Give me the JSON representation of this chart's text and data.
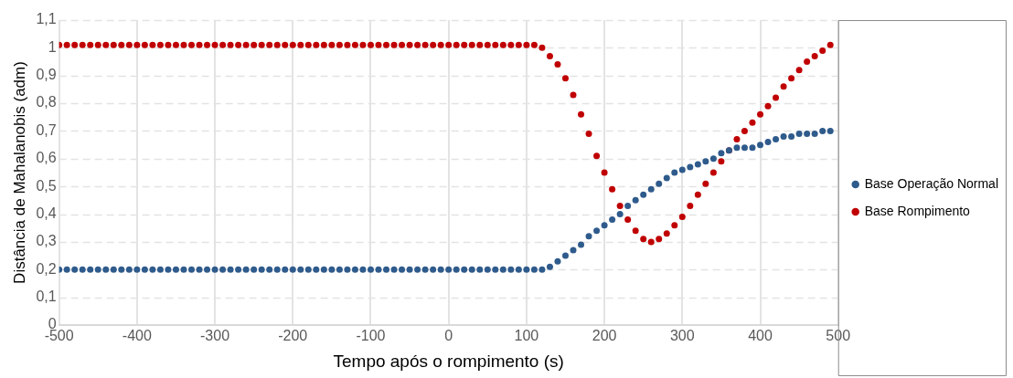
{
  "chart_data": {
    "type": "scatter",
    "xlabel": "Tempo após o rompimento (s)",
    "ylabel": "Distância de Mahalanobis (adm)",
    "x": [
      -500,
      -490,
      -480,
      -470,
      -460,
      -450,
      -440,
      -430,
      -420,
      -410,
      -400,
      -390,
      -380,
      -370,
      -360,
      -350,
      -340,
      -330,
      -320,
      -310,
      -300,
      -290,
      -280,
      -270,
      -260,
      -250,
      -240,
      -230,
      -220,
      -210,
      -200,
      -190,
      -180,
      -170,
      -160,
      -150,
      -140,
      -130,
      -120,
      -110,
      -100,
      -90,
      -80,
      -70,
      -60,
      -50,
      -40,
      -30,
      -20,
      -10,
      0,
      10,
      20,
      30,
      40,
      50,
      60,
      70,
      80,
      90,
      100,
      110,
      120,
      130,
      140,
      150,
      160,
      170,
      180,
      190,
      200,
      210,
      220,
      230,
      240,
      250,
      260,
      270,
      280,
      290,
      300,
      310,
      320,
      330,
      340,
      350,
      360,
      370,
      380,
      390,
      400,
      410,
      420,
      430,
      440,
      450,
      460,
      470,
      480,
      490
    ],
    "series": [
      {
        "name": "Base Operação Normal",
        "color": "#2f5b8c",
        "values": [
          0.2,
          0.2,
          0.2,
          0.2,
          0.2,
          0.2,
          0.2,
          0.2,
          0.2,
          0.2,
          0.2,
          0.2,
          0.2,
          0.2,
          0.2,
          0.2,
          0.2,
          0.2,
          0.2,
          0.2,
          0.2,
          0.2,
          0.2,
          0.2,
          0.2,
          0.2,
          0.2,
          0.2,
          0.2,
          0.2,
          0.2,
          0.2,
          0.2,
          0.2,
          0.2,
          0.2,
          0.2,
          0.2,
          0.2,
          0.2,
          0.2,
          0.2,
          0.2,
          0.2,
          0.2,
          0.2,
          0.2,
          0.2,
          0.2,
          0.2,
          0.2,
          0.2,
          0.2,
          0.2,
          0.2,
          0.2,
          0.2,
          0.2,
          0.2,
          0.2,
          0.2,
          0.2,
          0.2,
          0.21,
          0.23,
          0.25,
          0.27,
          0.29,
          0.32,
          0.34,
          0.36,
          0.38,
          0.4,
          0.43,
          0.45,
          0.47,
          0.49,
          0.51,
          0.53,
          0.55,
          0.56,
          0.57,
          0.58,
          0.59,
          0.6,
          0.62,
          0.63,
          0.64,
          0.64,
          0.64,
          0.65,
          0.66,
          0.67,
          0.68,
          0.68,
          0.69,
          0.69,
          0.69,
          0.7,
          0.7
        ]
      },
      {
        "name": "Base Rompimento",
        "color": "#c00000",
        "values": [
          1.01,
          1.01,
          1.01,
          1.01,
          1.01,
          1.01,
          1.01,
          1.01,
          1.01,
          1.01,
          1.01,
          1.01,
          1.01,
          1.01,
          1.01,
          1.01,
          1.01,
          1.01,
          1.01,
          1.01,
          1.01,
          1.01,
          1.01,
          1.01,
          1.01,
          1.01,
          1.01,
          1.01,
          1.01,
          1.01,
          1.01,
          1.01,
          1.01,
          1.01,
          1.01,
          1.01,
          1.01,
          1.01,
          1.01,
          1.01,
          1.01,
          1.01,
          1.01,
          1.01,
          1.01,
          1.01,
          1.01,
          1.01,
          1.01,
          1.01,
          1.01,
          1.01,
          1.01,
          1.01,
          1.01,
          1.01,
          1.01,
          1.01,
          1.01,
          1.01,
          1.01,
          1.01,
          1.0,
          0.97,
          0.94,
          0.89,
          0.83,
          0.76,
          0.69,
          0.61,
          0.55,
          0.49,
          0.43,
          0.38,
          0.34,
          0.31,
          0.3,
          0.31,
          0.33,
          0.36,
          0.39,
          0.43,
          0.47,
          0.51,
          0.55,
          0.59,
          0.63,
          0.67,
          0.7,
          0.73,
          0.76,
          0.79,
          0.82,
          0.86,
          0.89,
          0.92,
          0.95,
          0.97,
          0.99,
          1.01
        ]
      }
    ],
    "xlim": [
      -500,
      500
    ],
    "xticks": [
      -500,
      -400,
      -300,
      -200,
      -100,
      0,
      100,
      200,
      300,
      400,
      500
    ],
    "ylim": [
      0,
      1.1
    ],
    "yticks": [
      0,
      {
        "value": 0.1,
        "label": "0,1"
      },
      {
        "value": 0.2,
        "label": "0,2"
      },
      {
        "value": 0.3,
        "label": "0,3"
      },
      {
        "value": 0.4,
        "label": "0,4"
      },
      {
        "value": 0.5,
        "label": "0,5"
      },
      {
        "value": 0.6,
        "label": "0,6"
      },
      {
        "value": 0.7,
        "label": "0,7"
      },
      {
        "value": 0.8,
        "label": "0,8"
      },
      {
        "value": 0.9,
        "label": "0,9"
      },
      1,
      {
        "value": 1.1,
        "label": "1,1"
      }
    ],
    "grid": true,
    "legend": "right",
    "marker": "circle"
  }
}
